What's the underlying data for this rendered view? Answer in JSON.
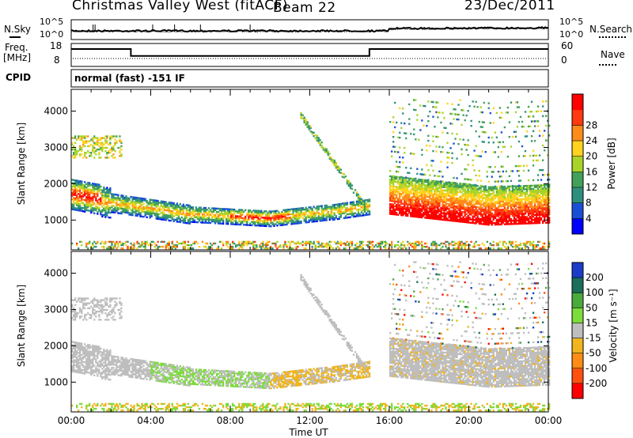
{
  "header": {
    "station": "Christmas Valley West (fitACF)",
    "beam": "Beam 22",
    "date": "23/Dec/2011"
  },
  "strip": {
    "nsky_label": "N.Sky",
    "nsearch_label": "N.Search",
    "noise_ticks_left": [
      "10^5",
      "10^0"
    ],
    "noise_ticks_right": [
      "10^5",
      "10^0"
    ],
    "freq_label_1": "Freq.",
    "freq_label_2": "[MHz]",
    "freq_ticks": [
      "18",
      "8"
    ],
    "nave_label": "Nave",
    "nave_ticks": [
      "60",
      "0"
    ],
    "cpid_label": "CPID",
    "cpid_value": "normal (fast) -151 IF"
  },
  "chart_data": [
    {
      "type": "heatmap",
      "panel": "power",
      "ylabel": "Slant Range [km]",
      "xlabel": "",
      "x_ticks": [
        "00:00",
        "04:00",
        "08:00",
        "12:00",
        "16:00",
        "20:00",
        "00:00"
      ],
      "y_ticks": [
        1000,
        2000,
        3000,
        4000
      ],
      "ylim": [
        180,
        4600
      ],
      "xlim_hours": [
        0,
        24
      ],
      "colorbar": {
        "label": "Power [dB]",
        "ticks": [
          4,
          8,
          12,
          16,
          20,
          24,
          28
        ],
        "range": [
          0,
          31
        ],
        "colors": [
          "#0000ff",
          "#1a4ed6",
          "#2f8f7f",
          "#42a05a",
          "#a8d42a",
          "#ffd21e",
          "#ff8c1a",
          "#ff3a10",
          "#ff0000"
        ]
      }
    },
    {
      "type": "heatmap",
      "panel": "velocity",
      "ylabel": "Slant Range [km]",
      "xlabel": "Time UT",
      "x_ticks": [
        "00:00",
        "04:00",
        "08:00",
        "12:00",
        "16:00",
        "20:00",
        "00:00"
      ],
      "y_ticks": [
        1000,
        2000,
        3000,
        4000
      ],
      "ylim": [
        180,
        4600
      ],
      "xlim_hours": [
        0,
        24
      ],
      "colorbar": {
        "label": "Velocity [m s⁻¹]",
        "ticks": [
          "200",
          "100",
          "50",
          "15",
          "-15",
          "-50",
          "-100",
          "-200"
        ],
        "colors": [
          "#1a3cc8",
          "#1a6e5a",
          "#4aaa3c",
          "#7cdc3c",
          "#bebebe",
          "#f0b41e",
          "#ff8c14",
          "#ff5010",
          "#ff0000"
        ]
      }
    }
  ],
  "noise_data": {
    "note_levels": "sky noise near 10^1, search noise near 10^1.3"
  },
  "freq_data": {
    "segments_hours": [
      [
        0,
        3,
        16
      ],
      [
        3,
        15,
        9
      ],
      [
        15,
        24,
        16
      ]
    ],
    "nave_level": 5
  }
}
